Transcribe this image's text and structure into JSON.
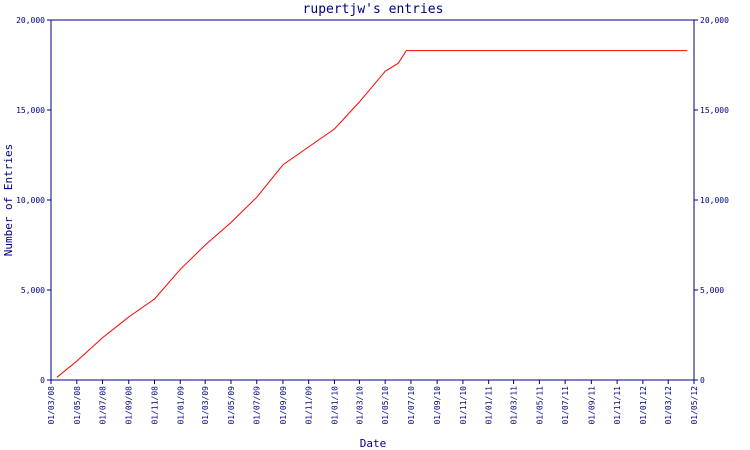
{
  "colors": {
    "background": "#ffffff",
    "axis": "#000080",
    "text": "#000080",
    "line": "#ff0000"
  },
  "chart_data": {
    "type": "line",
    "title": "rupertjw's entries",
    "xlabel": "Date",
    "ylabel": "Number of Entries",
    "x_tick_labels": [
      "01/03/08",
      "01/05/08",
      "01/07/08",
      "01/09/08",
      "01/11/08",
      "01/01/09",
      "01/03/09",
      "01/05/09",
      "01/07/09",
      "01/09/09",
      "01/11/09",
      "01/01/10",
      "01/03/10",
      "01/05/10",
      "01/07/10",
      "01/09/10",
      "01/11/10",
      "01/01/11",
      "01/03/11",
      "01/05/11",
      "01/07/11",
      "01/09/11",
      "01/11/11",
      "01/01/12",
      "01/03/12",
      "01/05/12"
    ],
    "y_ticks": [
      0,
      5000,
      10000,
      15000,
      20000
    ],
    "y_tick_labels": [
      "0",
      "5,000",
      "10,000",
      "15,000",
      "20,000"
    ],
    "ylim": [
      0,
      20000
    ],
    "grid": false,
    "series": [
      {
        "x": [
          "2008-03-15",
          "2008-05-01",
          "2008-07-01",
          "2008-09-01",
          "2008-11-01",
          "2009-01-01",
          "2009-03-01",
          "2009-05-01",
          "2009-07-01",
          "2009-09-01",
          "2009-11-01",
          "2010-01-01",
          "2010-03-01",
          "2010-05-01",
          "2010-06-01",
          "2010-06-20",
          "2012-04-15"
        ],
        "values": [
          150,
          1050,
          2350,
          3500,
          4500,
          6150,
          7500,
          8750,
          10150,
          11950,
          12950,
          13950,
          15450,
          17150,
          17600,
          18300,
          18300
        ]
      }
    ]
  }
}
